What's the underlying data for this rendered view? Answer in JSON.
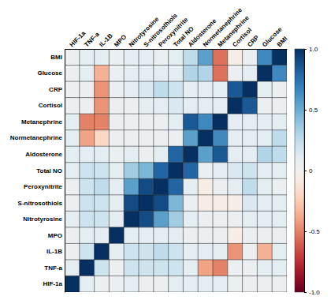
{
  "chart_data": {
    "type": "heatmap",
    "categories": [
      "HIF-1a",
      "TNF-a",
      "IL-1B",
      "MPO",
      "Nitrotyrosine",
      "S-nitrosothiols",
      "Peroxynitrite",
      "Total NO",
      "Aldosterone",
      "Normetanephrine",
      "Metanephrine",
      "Cortisol",
      "CRP",
      "Glucose",
      "BMI"
    ],
    "series": [
      {
        "name": "BMI",
        "values": [
          0.05,
          0.1,
          0.1,
          0.05,
          0.1,
          0.1,
          0.05,
          0.1,
          0.25,
          0.55,
          -0.55,
          -0.05,
          0.05,
          0.65,
          1.0
        ]
      },
      {
        "name": "Glucose",
        "values": [
          0.05,
          0.1,
          -0.35,
          0.05,
          0.1,
          0.1,
          0.1,
          0.1,
          0.3,
          0.3,
          -0.55,
          0.05,
          0.1,
          1.0,
          0.65
        ]
      },
      {
        "name": "CRP",
        "values": [
          0.05,
          0.05,
          -0.45,
          0.05,
          0.1,
          0.15,
          0.25,
          0.2,
          0.1,
          0.1,
          0.1,
          0.85,
          1.0,
          0.1,
          0.05
        ]
      },
      {
        "name": "Cortisol",
        "values": [
          0.05,
          0.05,
          -0.45,
          0.05,
          0.05,
          0.1,
          0.1,
          0.15,
          0.1,
          0.1,
          0.1,
          1.0,
          0.85,
          0.05,
          0.05
        ]
      },
      {
        "name": "Metanephrine",
        "values": [
          0.1,
          -0.5,
          -0.5,
          0.05,
          0.05,
          0.05,
          0.05,
          0.1,
          0.85,
          0.65,
          1.0,
          0.1,
          0.1,
          0.1,
          0.1
        ]
      },
      {
        "name": "Normetanephrine",
        "values": [
          0.1,
          -0.4,
          -0.2,
          0.05,
          0.05,
          0.05,
          0.05,
          0.05,
          0.55,
          1.0,
          0.65,
          0.1,
          0.1,
          0.1,
          0.25
        ]
      },
      {
        "name": "Aldosterone",
        "values": [
          0.1,
          0.1,
          0.1,
          0.05,
          0.1,
          0.05,
          0.1,
          0.8,
          1.0,
          0.55,
          0.85,
          0.1,
          0.1,
          0.3,
          0.25
        ]
      },
      {
        "name": "Total NO",
        "values": [
          0.1,
          0.2,
          0.2,
          0.1,
          0.35,
          0.45,
          0.8,
          1.0,
          0.8,
          0.05,
          0.1,
          0.15,
          0.2,
          0.1,
          0.1
        ]
      },
      {
        "name": "Peroxynitrite",
        "values": [
          0.05,
          0.2,
          0.25,
          0.1,
          0.55,
          0.9,
          1.0,
          0.8,
          0.1,
          -0.05,
          0.05,
          0.1,
          0.25,
          0.1,
          0.05
        ]
      },
      {
        "name": "S-nitrosothiols",
        "values": [
          0.05,
          0.2,
          0.2,
          0.1,
          0.9,
          1.0,
          0.9,
          0.45,
          0.05,
          -0.05,
          -0.05,
          -0.05,
          0.15,
          0.1,
          0.1
        ]
      },
      {
        "name": "Nitrotyrosine",
        "values": [
          0.1,
          0.2,
          0.2,
          0.1,
          1.0,
          0.9,
          0.55,
          0.35,
          0.1,
          0.05,
          0.05,
          0.05,
          0.1,
          0.1,
          0.1
        ]
      },
      {
        "name": "MPO",
        "values": [
          0.05,
          0.1,
          0.1,
          1.0,
          0.1,
          0.1,
          0.1,
          0.1,
          0.05,
          0.05,
          0.05,
          -0.05,
          0.05,
          0.05,
          0.05
        ]
      },
      {
        "name": "IL-1B",
        "values": [
          0.05,
          0.2,
          1.0,
          0.1,
          0.2,
          0.2,
          0.25,
          0.2,
          0.1,
          0.1,
          0.1,
          -0.45,
          0.05,
          -0.35,
          0.1
        ]
      },
      {
        "name": "TNF-a",
        "values": [
          0.1,
          1.0,
          0.2,
          0.05,
          0.2,
          0.2,
          0.2,
          0.2,
          0.1,
          -0.4,
          -0.5,
          0.05,
          0.05,
          0.1,
          0.1
        ]
      },
      {
        "name": "HIF-1a",
        "values": [
          1.0,
          0.1,
          0.05,
          0.05,
          0.1,
          0.05,
          0.05,
          0.1,
          0.1,
          0.1,
          0.1,
          0.05,
          0.05,
          0.05,
          0.05
        ]
      }
    ],
    "zlim": [
      -1.0,
      1.0
    ],
    "zticks": [
      {
        "value": -1.0,
        "label": "-1.0"
      },
      {
        "value": -0.5,
        "label": "-0.5"
      },
      0,
      0.5,
      {
        "value": 1.0,
        "label": "1.0"
      }
    ],
    "grid": true
  }
}
